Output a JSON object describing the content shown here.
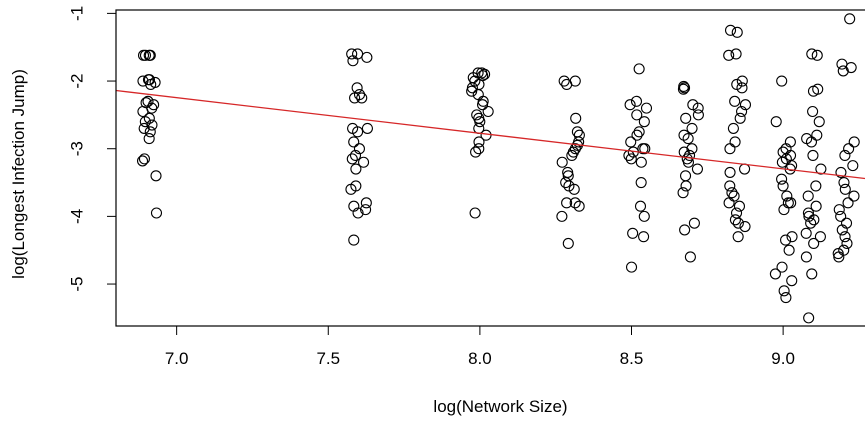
{
  "chart_data": {
    "type": "scatter",
    "title": "",
    "xlabel": "log(Network Size)",
    "ylabel": "log(Longest Infection Jump)",
    "xlim": [
      6.8,
      9.27
    ],
    "ylim": [
      -5.62,
      -0.95
    ],
    "xticks": [
      7.0,
      7.5,
      8.0,
      8.5,
      9.0
    ],
    "xtick_labels": [
      "7.0",
      "7.5",
      "8.0",
      "8.5",
      "9.0"
    ],
    "yticks": [
      -5,
      -4,
      -3,
      -2,
      -1
    ],
    "ytick_labels": [
      "-5",
      "-4",
      "-3",
      "-2",
      "-1"
    ],
    "grid": false,
    "legend": null,
    "colors": {
      "points": "#000000",
      "fit_line": "#d62728",
      "axis": "#000000"
    },
    "fit_line": {
      "x": [
        6.8,
        9.27
      ],
      "y": [
        -2.14,
        -3.44
      ]
    },
    "clusters": [
      {
        "x_center": 6.91,
        "spread": 0.025,
        "y": [
          -1.62,
          -1.62,
          -1.62,
          -1.62,
          -1.98,
          -1.98,
          -2.0,
          -2.02,
          -2.05,
          -2.3,
          -2.32,
          -2.35,
          -2.4,
          -2.45,
          -2.55,
          -2.6,
          -2.65,
          -2.7,
          -2.75,
          -2.85,
          -3.15,
          -3.18,
          -3.4,
          -3.95
        ]
      },
      {
        "x_center": 7.6,
        "spread": 0.03,
        "y": [
          -1.6,
          -1.6,
          -1.65,
          -1.7,
          -2.1,
          -2.2,
          -2.25,
          -2.25,
          -2.7,
          -2.7,
          -2.75,
          -2.9,
          -3.0,
          -3.1,
          -3.15,
          -3.2,
          -3.3,
          -3.55,
          -3.6,
          -3.8,
          -3.85,
          -3.9,
          -3.95,
          -4.35
        ]
      },
      {
        "x_center": 8.0,
        "spread": 0.03,
        "y": [
          -1.88,
          -1.88,
          -1.9,
          -1.92,
          -1.95,
          -2.0,
          -2.05,
          -2.1,
          -2.15,
          -2.2,
          -2.3,
          -2.35,
          -2.45,
          -2.5,
          -2.55,
          -2.6,
          -2.7,
          -2.8,
          -2.9,
          -3.0,
          -3.05,
          -3.95
        ]
      },
      {
        "x_center": 8.3,
        "spread": 0.03,
        "y": [
          -2.0,
          -2.0,
          -2.05,
          -2.55,
          -2.75,
          -2.8,
          -2.9,
          -2.95,
          -3.0,
          -3.05,
          -3.1,
          -3.2,
          -3.35,
          -3.4,
          -3.5,
          -3.55,
          -3.6,
          -3.8,
          -3.8,
          -3.85,
          -4.0,
          -4.4
        ]
      },
      {
        "x_center": 8.52,
        "spread": 0.03,
        "y": [
          -1.82,
          -2.3,
          -2.35,
          -2.4,
          -2.5,
          -2.6,
          -2.75,
          -2.8,
          -2.9,
          -3.0,
          -3.0,
          -3.05,
          -3.1,
          -3.15,
          -3.2,
          -3.5,
          -3.85,
          -4.0,
          -4.25,
          -4.3,
          -4.75
        ]
      },
      {
        "x_center": 8.7,
        "spread": 0.03,
        "y": [
          -2.08,
          -2.1,
          -2.12,
          -2.35,
          -2.4,
          -2.5,
          -2.55,
          -2.7,
          -2.8,
          -2.85,
          -3.0,
          -3.05,
          -3.1,
          -3.15,
          -3.2,
          -3.3,
          -3.4,
          -3.55,
          -3.65,
          -4.1,
          -4.2,
          -4.6
        ]
      },
      {
        "x_center": 8.85,
        "spread": 0.03,
        "y": [
          -1.25,
          -1.28,
          -1.6,
          -1.62,
          -2.0,
          -2.05,
          -2.1,
          -2.3,
          -2.35,
          -2.45,
          -2.55,
          -2.7,
          -2.9,
          -3.0,
          -3.3,
          -3.35,
          -3.55,
          -3.65,
          -3.7,
          -3.8,
          -3.85,
          -3.95,
          -4.05,
          -4.1,
          -4.15,
          -4.3
        ]
      },
      {
        "x_center": 9.0,
        "spread": 0.03,
        "y": [
          -2.0,
          -2.6,
          -2.9,
          -3.0,
          -3.05,
          -3.1,
          -3.15,
          -3.2,
          -3.25,
          -3.3,
          -3.45,
          -3.55,
          -3.7,
          -3.8,
          -3.8,
          -3.9,
          -4.3,
          -4.35,
          -4.5,
          -4.75,
          -4.85,
          -4.95,
          -5.1,
          -5.2
        ]
      },
      {
        "x_center": 9.1,
        "spread": 0.025,
        "y": [
          -1.6,
          -1.62,
          -2.12,
          -2.15,
          -2.45,
          -2.6,
          -2.8,
          -2.85,
          -2.9,
          -3.1,
          -3.3,
          -3.55,
          -3.7,
          -3.85,
          -3.95,
          -4.0,
          -4.05,
          -4.1,
          -4.25,
          -4.3,
          -4.4,
          -4.6,
          -4.85,
          -5.5
        ]
      },
      {
        "x_center": 9.21,
        "spread": 0.03,
        "y": [
          -1.08,
          -1.75,
          -1.8,
          -1.85,
          -2.9,
          -3.0,
          -3.1,
          -3.25,
          -3.35,
          -3.5,
          -3.6,
          -3.7,
          -3.8,
          -3.9,
          -4.0,
          -4.1,
          -4.2,
          -4.3,
          -4.4,
          -4.5,
          -4.55,
          -4.6
        ]
      }
    ]
  }
}
